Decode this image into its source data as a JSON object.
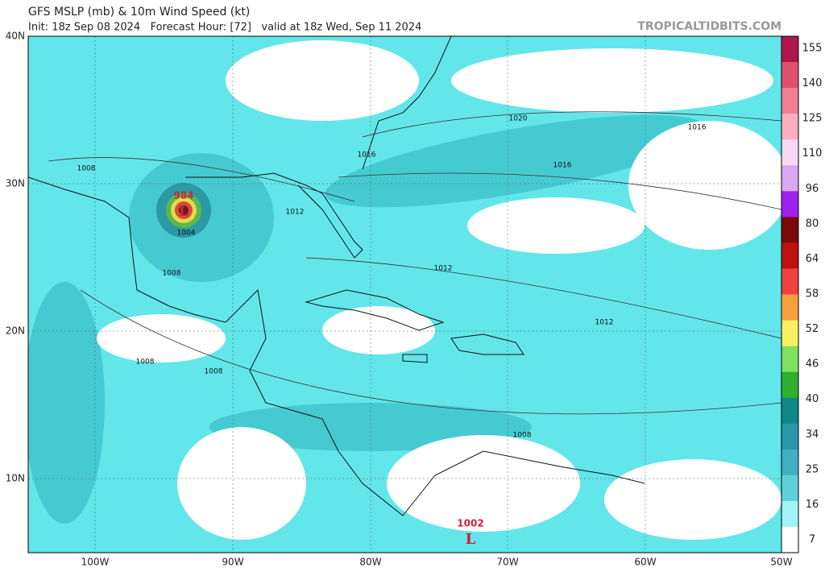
{
  "header": {
    "title": "GFS MSLP (mb) & 10m Wind Speed (kt)",
    "subtitle": "Init: 18z Sep 08 2024   Forecast Hour: [72]   valid at 18z Wed, Sep 11 2024",
    "source": "TROPICALTIDBITS.COM"
  },
  "map": {
    "lat_labels": [
      "40N",
      "30N",
      "20N",
      "10N"
    ],
    "lon_labels": [
      "100W",
      "90W",
      "80W",
      "70W",
      "60W",
      "50W"
    ],
    "isobar_labels": [
      "1020",
      "1016",
      "1016",
      "1016",
      "1008",
      "1012",
      "1012",
      "1008",
      "1012",
      "1008",
      "1008",
      "1008",
      "1004"
    ],
    "lows": [
      {
        "pressure": "984",
        "symbol": "L"
      },
      {
        "pressure": "1002",
        "symbol": "L"
      }
    ]
  },
  "colorbar": {
    "ticks": [
      "155",
      "140",
      "125",
      "110",
      "96",
      "80",
      "64",
      "58",
      "52",
      "46",
      "40",
      "34",
      "25",
      "16",
      "7"
    ]
  }
}
